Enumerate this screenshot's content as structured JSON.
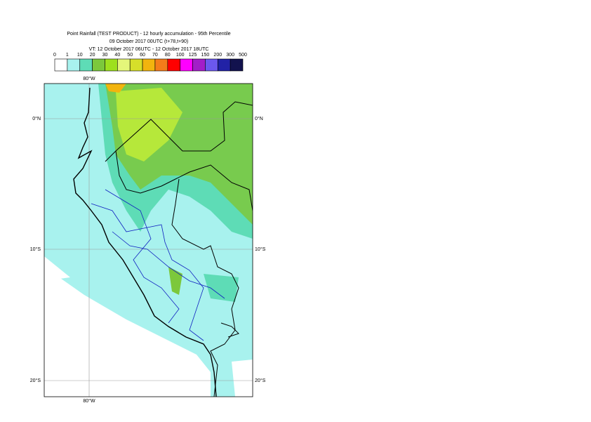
{
  "header": {
    "title": "Point Rainfall (TEST PRODUCT) - 12 hourly accumulation - 95th Percentile",
    "run": "09 October 2017 00UTC (t+78,t+90)",
    "validity": "VT: 12 October 2017 06UTC - 12 October 2017 18UTC"
  },
  "legend": {
    "labels": [
      "0",
      "1",
      "10",
      "20",
      "30",
      "40",
      "50",
      "60",
      "70",
      "80",
      "100",
      "125",
      "150",
      "200",
      "300",
      "500"
    ],
    "colors": [
      "#ffffff",
      "#a8f2ee",
      "#5edcb6",
      "#7cc83c",
      "#9ee01e",
      "#e4f67a",
      "#d6df2a",
      "#f2b40e",
      "#f47c1a",
      "#ff0000",
      "#ff00ff",
      "#a21ec8",
      "#6c58ee",
      "#2222a6",
      "#12124e"
    ]
  },
  "map": {
    "lat_labels": [
      "0°N",
      "10°S",
      "20°S"
    ],
    "lon_label": "80°W"
  }
}
